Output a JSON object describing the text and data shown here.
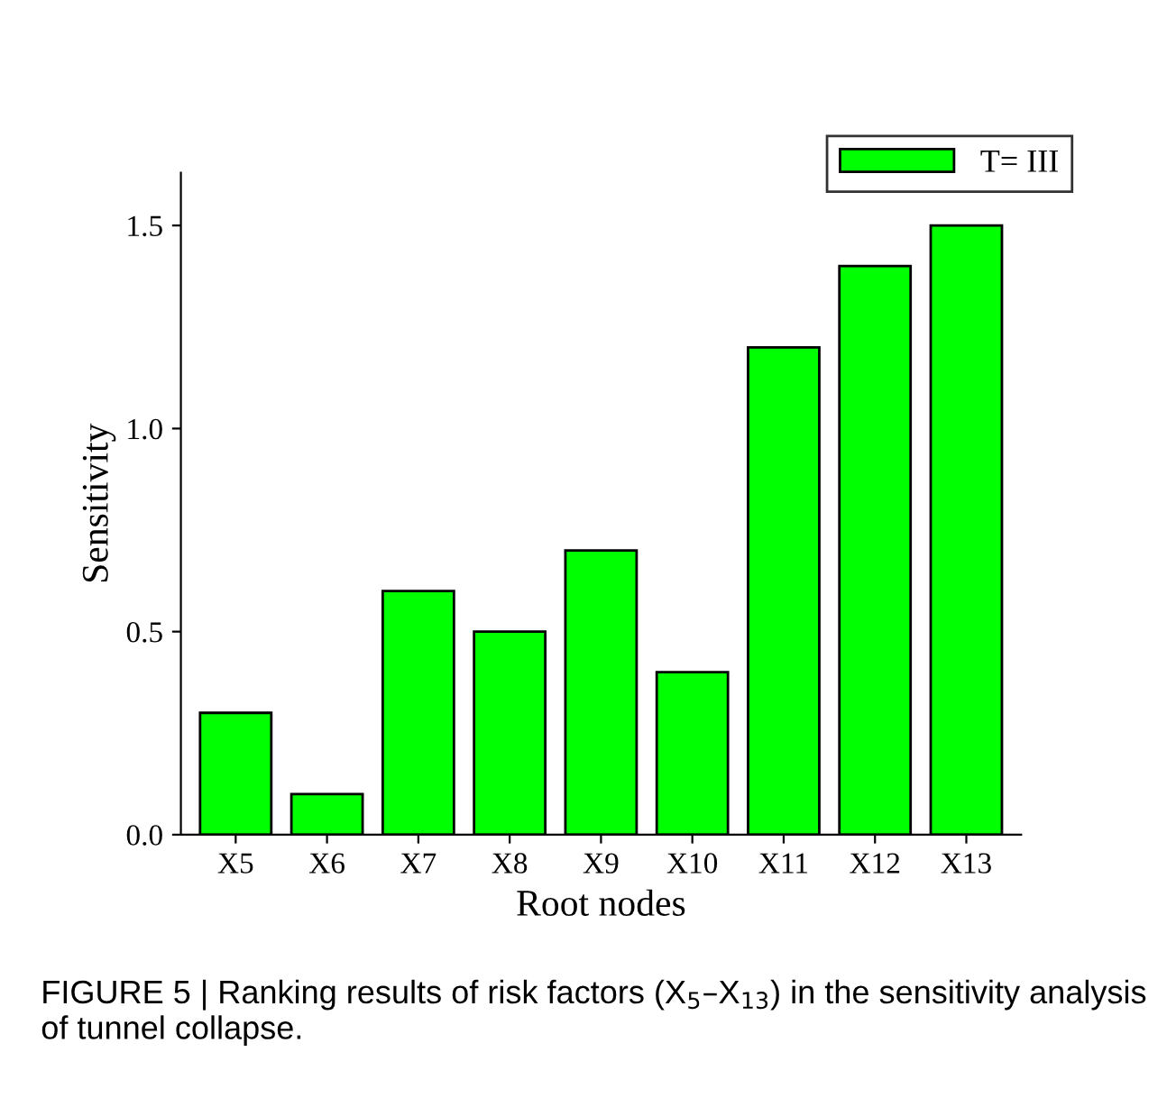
{
  "chart_data": {
    "type": "bar",
    "categories": [
      "X5",
      "X6",
      "X7",
      "X8",
      "X9",
      "X10",
      "X11",
      "X12",
      "X13"
    ],
    "series": [
      {
        "name": "T= III",
        "color": "#00ff00",
        "values": [
          0.3,
          0.1,
          0.6,
          0.5,
          0.7,
          0.4,
          1.2,
          1.4,
          1.5
        ]
      }
    ],
    "xlabel": "Root nodes",
    "ylabel": "Sensitivity",
    "ylim": [
      0,
      1.63
    ],
    "yticks": [
      {
        "value": 0,
        "label": "0.0"
      },
      0.5,
      {
        "value": 1,
        "label": "1.0"
      },
      1.5
    ],
    "legend": "top right",
    "grid": false,
    "annotations": [
      "FIGURE 5 | Ranking results of risk factors (X$_{5}$–X$_{13}$) in the sensitivity analysis of tunnel collapse."
    ]
  }
}
